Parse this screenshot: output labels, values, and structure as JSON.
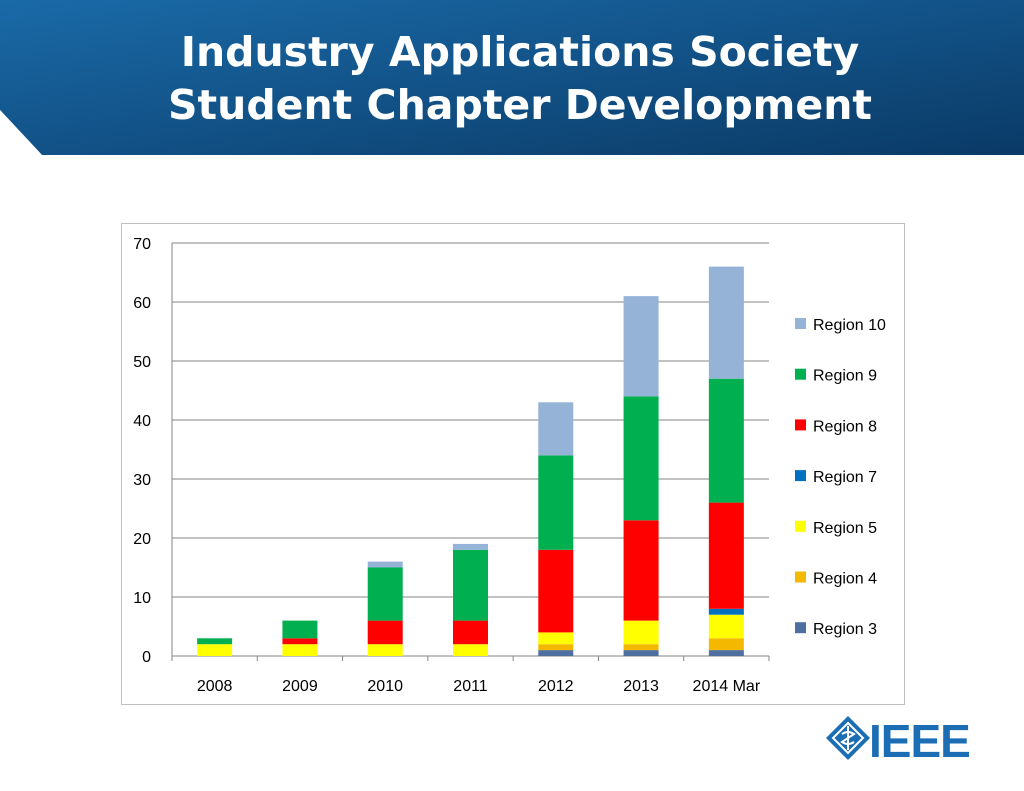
{
  "slide": {
    "title_line1": "Industry Applications Society",
    "title_line2": "Student Chapter Development"
  },
  "logo": {
    "text": "IEEE",
    "icon": "ieee-diamond-logo",
    "color": "#1b6db4"
  },
  "colors": {
    "banner_dark": "#0a3a66",
    "banner_light": "#1a6aa8"
  },
  "chart_data": {
    "type": "bar",
    "stacked": true,
    "categories": [
      "2008",
      "2009",
      "2010",
      "2011",
      "2012",
      "2013",
      "2014 Mar"
    ],
    "ylim": [
      0,
      70
    ],
    "yticks": [
      0,
      10,
      20,
      30,
      40,
      50,
      60,
      70
    ],
    "grid": true,
    "legend_position": "right",
    "series": [
      {
        "name": "Region 3",
        "color": "#4f6fa0",
        "values": [
          0,
          0,
          0,
          0,
          1,
          1,
          1
        ]
      },
      {
        "name": "Region 4",
        "color": "#f5b800",
        "values": [
          0,
          0,
          0,
          0,
          1,
          1,
          2
        ]
      },
      {
        "name": "Region 5",
        "color": "#ffff00",
        "values": [
          2,
          2,
          2,
          2,
          2,
          4,
          4
        ]
      },
      {
        "name": "Region 7",
        "color": "#0070c0",
        "values": [
          0,
          0,
          0,
          0,
          0,
          0,
          1
        ]
      },
      {
        "name": "Region 8",
        "color": "#ff0000",
        "values": [
          0,
          1,
          4,
          4,
          14,
          17,
          18
        ]
      },
      {
        "name": "Region 9",
        "color": "#00b050",
        "values": [
          1,
          3,
          9,
          12,
          16,
          21,
          21
        ]
      },
      {
        "name": "Region 10",
        "color": "#95b3d7",
        "values": [
          0,
          0,
          1,
          1,
          9,
          17,
          19
        ]
      }
    ]
  }
}
